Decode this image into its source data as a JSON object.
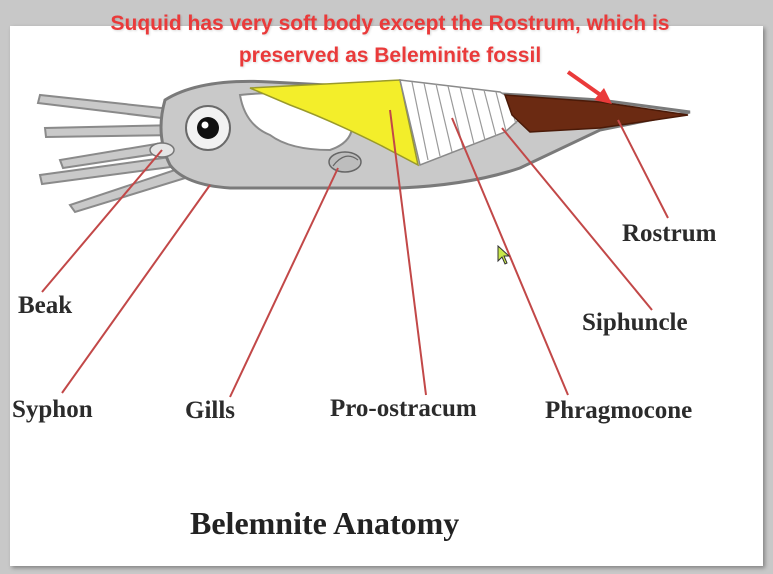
{
  "annotation": {
    "line1": "Suquid has very soft body except the Rostrum, which is",
    "line2": "preserved  as Beleminite fossil",
    "color": "#ea3a3a"
  },
  "labels": {
    "beak": "Beak",
    "syphon": "Syphon",
    "gills": "Gills",
    "pro_ostracum": "Pro-ostracum",
    "phragmocone": "Phragmocone",
    "siphuncle": "Siphuncle",
    "rostrum": "Rostrum"
  },
  "title": "Belemnite Anatomy",
  "colors": {
    "body": "#c9c9c9",
    "pro_ostracum": "#f3ee2a",
    "rostrum": "#6b2a12",
    "leader_lines": "#c24848"
  },
  "icons": {
    "cursor": "arrow-pointer-icon"
  }
}
